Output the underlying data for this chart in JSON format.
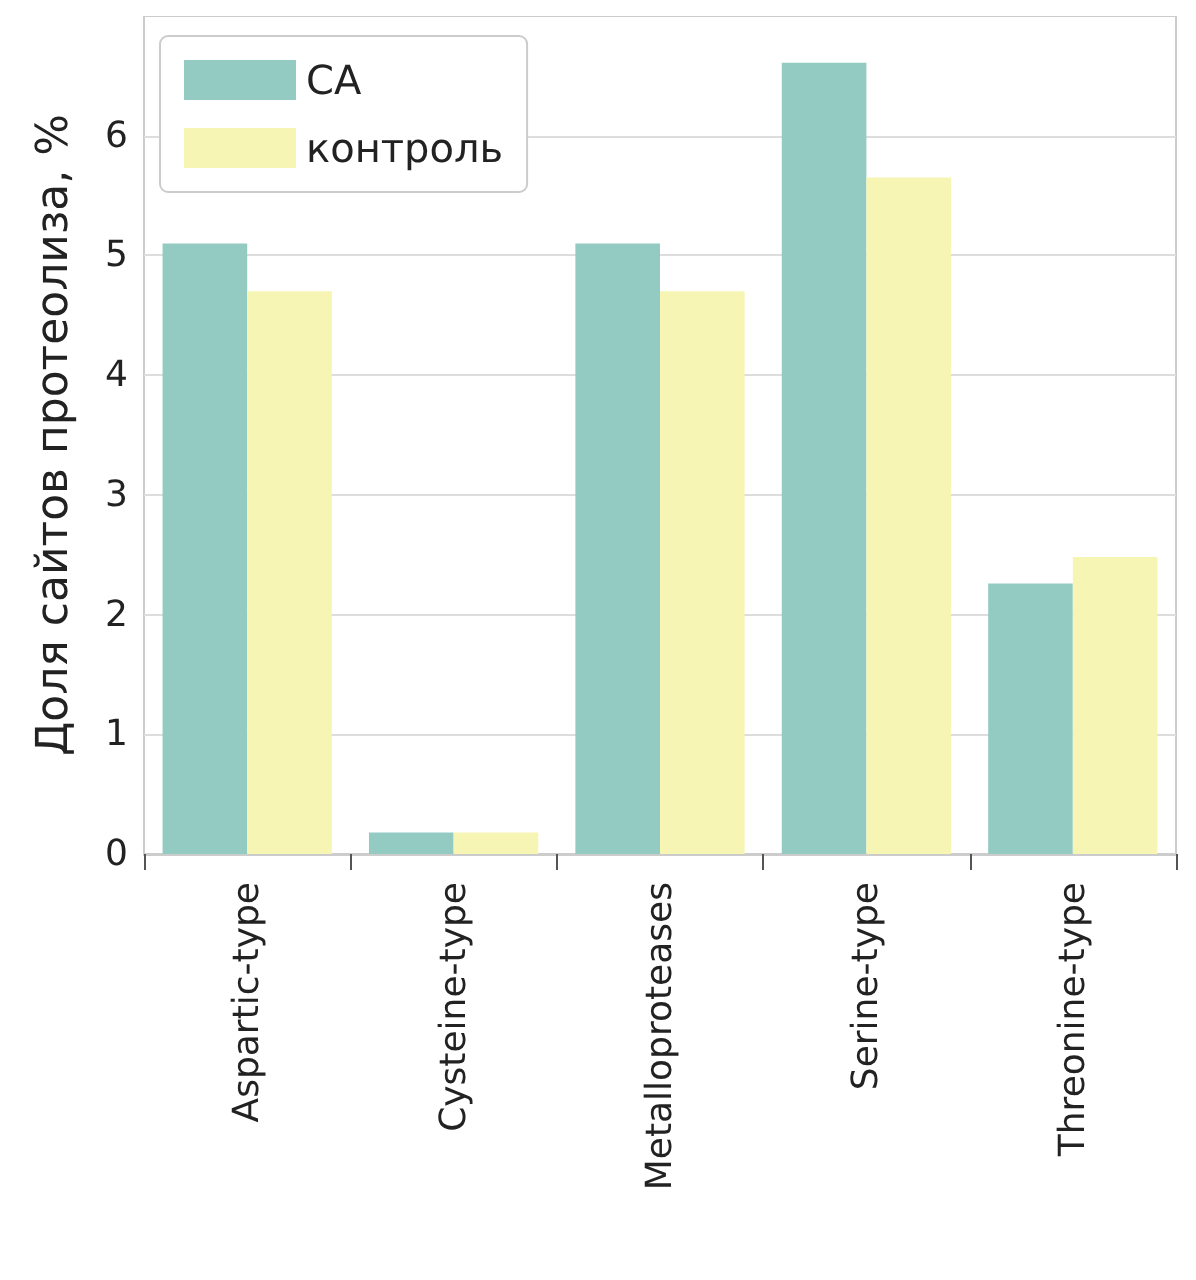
{
  "chart_data": {
    "type": "bar",
    "ylabel": "Доля сайтов протеолиза, %",
    "categories": [
      "Aspartic-type",
      "Cysteine-type",
      "Metalloproteases",
      "Serine-type",
      "Threonine-type"
    ],
    "series": [
      {
        "name": "CA",
        "color": "#93cbc3",
        "values": [
          5.1,
          0.18,
          5.1,
          6.61,
          2.26
        ]
      },
      {
        "name": "контроль",
        "color": "#f6f5b3",
        "values": [
          4.7,
          0.18,
          4.7,
          5.65,
          2.48
        ]
      }
    ],
    "ylim": [
      0,
      7
    ],
    "yticks": [
      0,
      1,
      2,
      3,
      4,
      5,
      6
    ],
    "grid": "y",
    "legend": "top left"
  }
}
